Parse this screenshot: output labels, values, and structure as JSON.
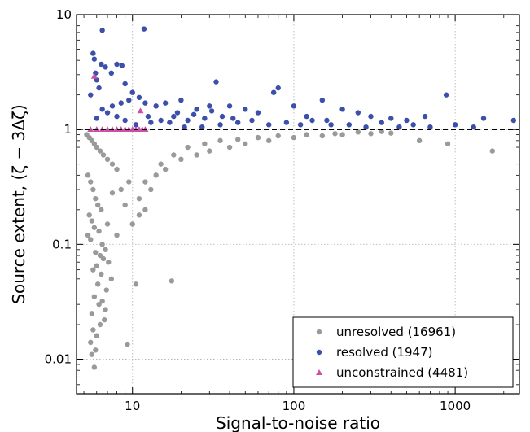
{
  "chart_data": {
    "type": "scatter",
    "xlabel": "Signal-to-noise ratio",
    "ylabel": "Source extent, (ζ − 3Δζ)",
    "xscale": "log",
    "yscale": "log",
    "xlim": [
      4.5,
      2500
    ],
    "ylim": [
      0.005,
      10
    ],
    "grid": true,
    "legend_position": "bottom-right",
    "x_ticks": [
      {
        "value": 10,
        "label": "10"
      },
      {
        "value": 100,
        "label": "100"
      },
      {
        "value": 1000,
        "label": "1000"
      }
    ],
    "y_ticks": [
      {
        "value": 0.01,
        "label": "0.01"
      },
      {
        "value": 0.1,
        "label": "0.1"
      },
      {
        "value": 1,
        "label": "1"
      },
      {
        "value": 10,
        "label": "10"
      }
    ],
    "reference_line": {
      "y": 1,
      "style": "dashed",
      "color": "#000000"
    },
    "series": [
      {
        "name": "unresolved (16961)",
        "marker": "circle",
        "color": "#9a9a9a",
        "points": [
          [
            5.2,
            0.9
          ],
          [
            5.4,
            0.85
          ],
          [
            5.6,
            0.8
          ],
          [
            5.8,
            0.75
          ],
          [
            6,
            0.7
          ],
          [
            6.3,
            0.65
          ],
          [
            6.6,
            0.6
          ],
          [
            7,
            0.55
          ],
          [
            7.5,
            0.5
          ],
          [
            8,
            0.45
          ],
          [
            5.3,
            0.4
          ],
          [
            5.5,
            0.35
          ],
          [
            5.7,
            0.3
          ],
          [
            5.9,
            0.25
          ],
          [
            6.1,
            0.22
          ],
          [
            6.4,
            0.2
          ],
          [
            5.4,
            0.18
          ],
          [
            5.6,
            0.16
          ],
          [
            5.8,
            0.14
          ],
          [
            6.2,
            0.13
          ],
          [
            5.3,
            0.12
          ],
          [
            5.5,
            0.11
          ],
          [
            6.5,
            0.1
          ],
          [
            6.8,
            0.09
          ],
          [
            5.9,
            0.085
          ],
          [
            6.3,
            0.08
          ],
          [
            6.6,
            0.075
          ],
          [
            7.1,
            0.07
          ],
          [
            6,
            0.065
          ],
          [
            5.7,
            0.06
          ],
          [
            6.4,
            0.055
          ],
          [
            7.4,
            0.05
          ],
          [
            6.1,
            0.045
          ],
          [
            6.9,
            0.04
          ],
          [
            5.8,
            0.035
          ],
          [
            6.5,
            0.032
          ],
          [
            6.2,
            0.03
          ],
          [
            6.8,
            0.027
          ],
          [
            5.6,
            0.025
          ],
          [
            6.7,
            0.022
          ],
          [
            6.3,
            0.02
          ],
          [
            5.7,
            0.018
          ],
          [
            6,
            0.016
          ],
          [
            5.5,
            0.014
          ],
          [
            5.9,
            0.012
          ],
          [
            5.6,
            0.011
          ],
          [
            5.8,
            0.0085
          ],
          [
            9.3,
            0.0135
          ],
          [
            10.5,
            0.045
          ],
          [
            17.5,
            0.048
          ],
          [
            12,
            0.35
          ],
          [
            14,
            0.4
          ],
          [
            16,
            0.45
          ],
          [
            20,
            0.55
          ],
          [
            25,
            0.6
          ],
          [
            30,
            0.65
          ],
          [
            40,
            0.7
          ],
          [
            50,
            0.75
          ],
          [
            70,
            0.8
          ],
          [
            100,
            0.85
          ],
          [
            150,
            0.88
          ],
          [
            200,
            0.9
          ],
          [
            300,
            0.92
          ],
          [
            400,
            0.93
          ],
          [
            8.5,
            0.3
          ],
          [
            9.5,
            0.35
          ],
          [
            11,
            0.25
          ],
          [
            13,
            0.3
          ],
          [
            15,
            0.5
          ],
          [
            18,
            0.6
          ],
          [
            22,
            0.7
          ],
          [
            28,
            0.75
          ],
          [
            35,
            0.8
          ],
          [
            45,
            0.82
          ],
          [
            60,
            0.85
          ],
          [
            80,
            0.88
          ],
          [
            120,
            0.9
          ],
          [
            180,
            0.92
          ],
          [
            250,
            0.95
          ],
          [
            350,
            0.96
          ],
          [
            600,
            0.8
          ],
          [
            1700,
            0.65
          ],
          [
            900,
            0.75
          ],
          [
            9,
            0.22
          ],
          [
            7.5,
            0.28
          ],
          [
            10,
            0.15
          ],
          [
            11,
            0.18
          ],
          [
            8,
            0.12
          ],
          [
            12,
            0.2
          ],
          [
            7,
            0.15
          ]
        ]
      },
      {
        "name": "resolved (1947)",
        "marker": "circle",
        "color": "#3b4fab",
        "points": [
          [
            6.5,
            7.3
          ],
          [
            11.8,
            7.5
          ],
          [
            5.7,
            4.6
          ],
          [
            5.8,
            4.1
          ],
          [
            6.4,
            3.7
          ],
          [
            6.8,
            3.5
          ],
          [
            8,
            3.7
          ],
          [
            8.6,
            3.6
          ],
          [
            7.4,
            3.1
          ],
          [
            5.9,
            3.1
          ],
          [
            6,
            2.7
          ],
          [
            9,
            2.5
          ],
          [
            10,
            2.1
          ],
          [
            11,
            1.9
          ],
          [
            12,
            1.7
          ],
          [
            14,
            1.6
          ],
          [
            16,
            1.7
          ],
          [
            20,
            1.8
          ],
          [
            25,
            1.5
          ],
          [
            30,
            1.6
          ],
          [
            33,
            2.6
          ],
          [
            40,
            1.6
          ],
          [
            50,
            1.5
          ],
          [
            60,
            1.4
          ],
          [
            75,
            2.1
          ],
          [
            80,
            2.3
          ],
          [
            100,
            1.6
          ],
          [
            120,
            1.3
          ],
          [
            150,
            1.8
          ],
          [
            160,
            1.2
          ],
          [
            200,
            1.5
          ],
          [
            250,
            1.4
          ],
          [
            300,
            1.3
          ],
          [
            400,
            1.25
          ],
          [
            500,
            1.2
          ],
          [
            650,
            1.3
          ],
          [
            880,
            2.0
          ],
          [
            1500,
            1.25
          ],
          [
            2300,
            1.2
          ],
          [
            7,
            1.4
          ],
          [
            8,
            1.3
          ],
          [
            9,
            1.2
          ],
          [
            6,
            1.25
          ],
          [
            6.5,
            1.5
          ],
          [
            7.5,
            1.6
          ],
          [
            8.5,
            1.7
          ],
          [
            9.5,
            1.8
          ],
          [
            5.5,
            2.0
          ],
          [
            6.2,
            2.3
          ],
          [
            13,
            1.15
          ],
          [
            18,
            1.3
          ],
          [
            22,
            1.2
          ],
          [
            28,
            1.25
          ],
          [
            35,
            1.1
          ],
          [
            45,
            1.15
          ],
          [
            55,
            1.2
          ],
          [
            70,
            1.1
          ],
          [
            90,
            1.15
          ],
          [
            110,
            1.1
          ],
          [
            130,
            1.2
          ],
          [
            170,
            1.1
          ],
          [
            220,
            1.1
          ],
          [
            280,
            1.05
          ],
          [
            350,
            1.15
          ],
          [
            450,
            1.05
          ],
          [
            550,
            1.1
          ],
          [
            700,
            1.05
          ],
          [
            1000,
            1.1
          ],
          [
            1300,
            1.05
          ],
          [
            10.5,
            1.1
          ],
          [
            12.5,
            1.3
          ],
          [
            15,
            1.2
          ],
          [
            17,
            1.15
          ],
          [
            19,
            1.4
          ],
          [
            21,
            1.05
          ],
          [
            24,
            1.35
          ],
          [
            27,
            1.05
          ],
          [
            31,
            1.45
          ],
          [
            36,
            1.3
          ],
          [
            42,
            1.25
          ]
        ]
      },
      {
        "name": "unconstrained (4481)",
        "marker": "triangle",
        "color": "#cc4fa6",
        "points": [
          [
            5.5,
            1.0
          ],
          [
            6,
            1.0
          ],
          [
            6.5,
            1.0
          ],
          [
            7,
            1.0
          ],
          [
            7.5,
            1.0
          ],
          [
            8,
            1.0
          ],
          [
            8.5,
            1.0
          ],
          [
            9,
            1.0
          ],
          [
            9.5,
            1.0
          ],
          [
            10,
            1.0
          ],
          [
            10.5,
            1.0
          ],
          [
            11,
            1.0
          ],
          [
            11.5,
            1.0
          ],
          [
            12,
            1.0
          ],
          [
            5.8,
            2.9
          ],
          [
            11.2,
            1.45
          ]
        ]
      }
    ]
  }
}
